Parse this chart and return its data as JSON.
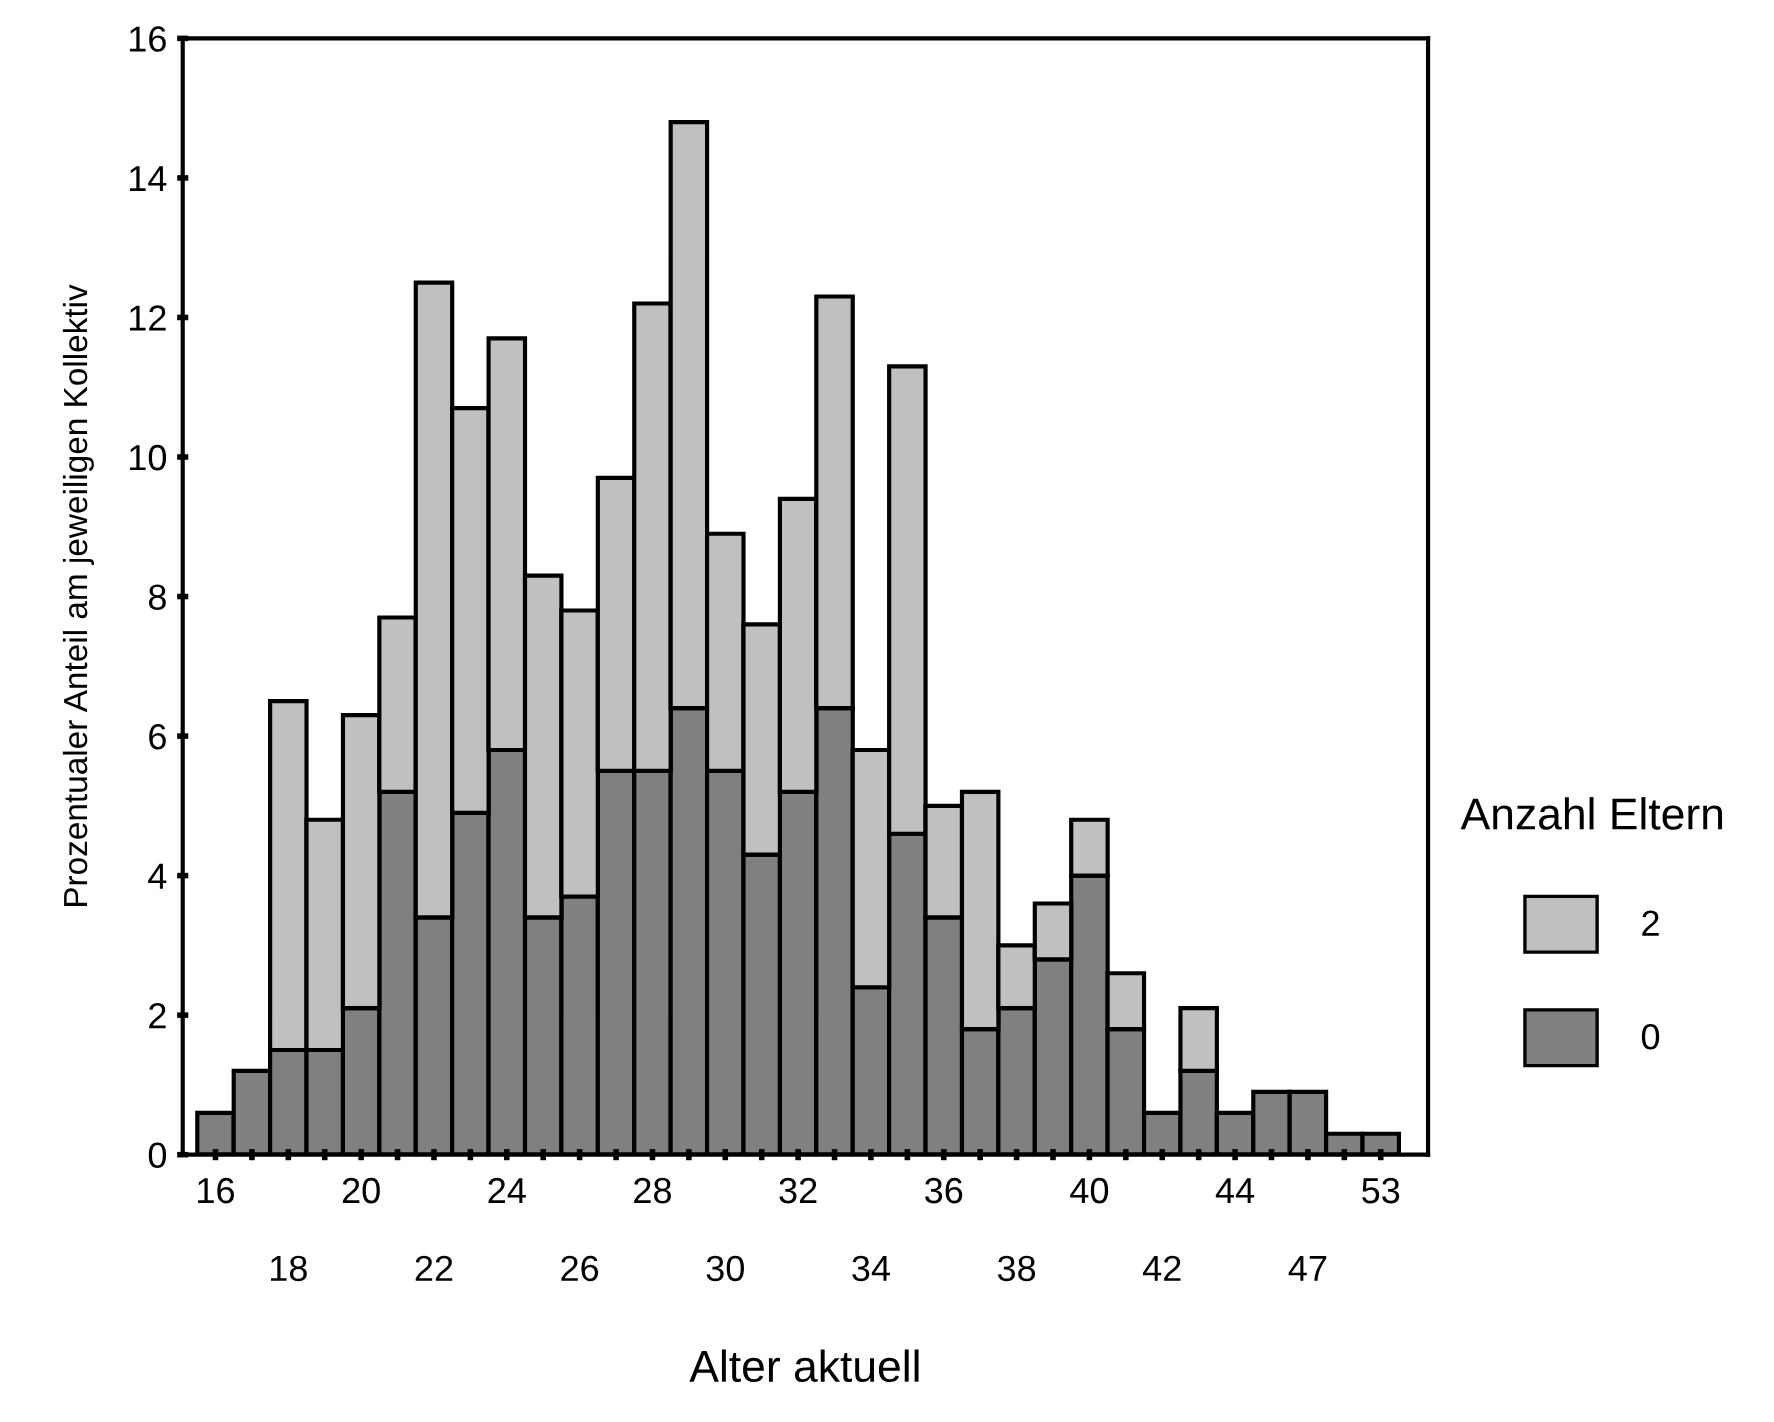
{
  "chart_data": {
    "type": "bar",
    "stacked": true,
    "xlabel": "Alter aktuell",
    "ylabel": "Prozentualer Anteil am jeweiligen Kollektiv",
    "legend_title": "Anzahl Eltern",
    "categories": [
      "16",
      null,
      "18",
      null,
      "20",
      null,
      "22",
      null,
      "24",
      null,
      "26",
      null,
      "28",
      null,
      "30",
      null,
      "32",
      null,
      "34",
      null,
      "36",
      null,
      "38",
      null,
      "40",
      null,
      "42",
      null,
      "44",
      null,
      "47",
      null,
      "53"
    ],
    "series": [
      {
        "name": "0",
        "color": "#808080",
        "values": [
          0.6,
          1.2,
          1.5,
          1.5,
          2.1,
          5.2,
          3.4,
          4.9,
          5.8,
          3.4,
          3.7,
          5.5,
          5.5,
          6.4,
          5.5,
          4.3,
          5.2,
          6.4,
          2.4,
          4.6,
          3.4,
          1.8,
          2.1,
          2.8,
          4.0,
          1.8,
          0.6,
          1.2,
          0.6,
          0.9,
          0.9,
          0.3,
          0.3
        ]
      },
      {
        "name": "2",
        "color": "#c0c0c0",
        "values": [
          null,
          null,
          5.0,
          3.3,
          4.2,
          2.5,
          9.1,
          5.8,
          5.9,
          4.9,
          4.1,
          4.2,
          6.7,
          8.4,
          3.4,
          3.3,
          4.2,
          5.9,
          3.4,
          6.7,
          1.6,
          3.4,
          0.9,
          0.8,
          0.8,
          0.8,
          null,
          0.9,
          null,
          null,
          null,
          null,
          null
        ]
      }
    ],
    "ylim": [
      0,
      16
    ],
    "yticks": [
      0,
      2,
      4,
      6,
      8,
      10,
      12,
      14,
      16
    ],
    "grid": false,
    "legend": "right"
  }
}
